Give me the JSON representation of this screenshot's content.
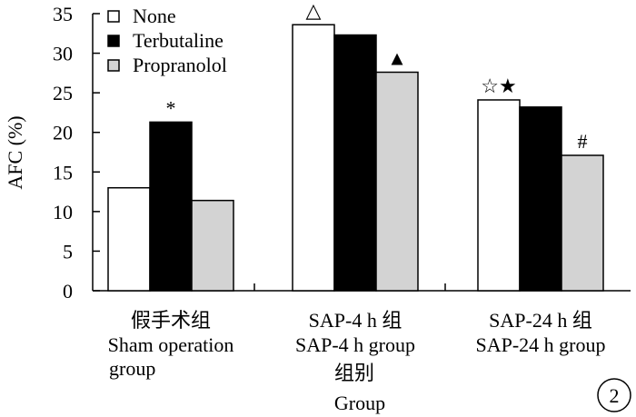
{
  "chart_data": {
    "type": "bar",
    "ylabel": "AFC (%)",
    "xlabel_cn": "组别",
    "xlabel_en": "Group",
    "ylim": [
      0,
      35
    ],
    "yticks": [
      0,
      5,
      10,
      15,
      20,
      25,
      30,
      35
    ],
    "categories": [
      {
        "cn": "假手术组",
        "en_line1": "Sham operation",
        "en_line2": "group"
      },
      {
        "cn": "SAP-4 h 组",
        "en_line1": "SAP-4 h group",
        "en_line2": ""
      },
      {
        "cn": "SAP-24 h 组",
        "en_line1": "SAP-24 h group",
        "en_line2": ""
      }
    ],
    "series": [
      {
        "name": "None",
        "color": "#ffffff",
        "values": [
          13.0,
          33.6,
          24.1
        ]
      },
      {
        "name": "Terbutaline",
        "color": "#000000",
        "values": [
          21.3,
          32.3,
          23.2
        ]
      },
      {
        "name": "Propranolol",
        "color": "#d3d3d3",
        "values": [
          11.4,
          27.6,
          17.1
        ]
      }
    ],
    "annotations": [
      {
        "category": 0,
        "series": 1,
        "text": "*"
      },
      {
        "category": 1,
        "series": 0,
        "text": "△"
      },
      {
        "category": 1,
        "series": 2,
        "text": "▲"
      },
      {
        "category": 2,
        "series": 0,
        "text": "☆★"
      },
      {
        "category": 2,
        "series": 2,
        "text": "#"
      }
    ],
    "legend_position": "top-left",
    "panel_label": "2"
  }
}
